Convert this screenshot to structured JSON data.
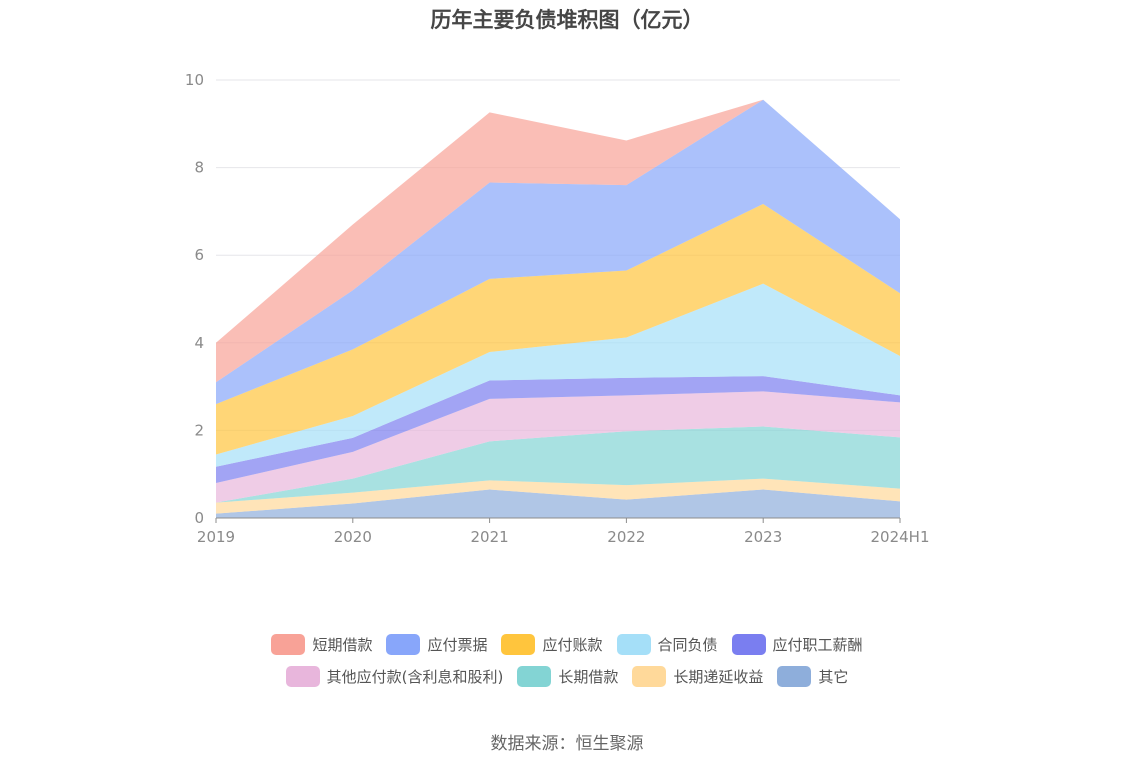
{
  "chart_data": {
    "type": "area",
    "stacked": true,
    "title": "历年主要负债堆积图（亿元）",
    "xlabel": "",
    "ylabel": "",
    "categories": [
      "2019",
      "2020",
      "2021",
      "2022",
      "2023",
      "2024H1"
    ],
    "ylim": [
      0,
      10
    ],
    "yticks": [
      "0",
      "2",
      "4",
      "6",
      "8",
      "10"
    ],
    "grid": true,
    "legend_position": "bottom",
    "series": [
      {
        "name": "其它",
        "color": "#8eaedb",
        "values": [
          0.1,
          0.33,
          0.65,
          0.42,
          0.65,
          0.38
        ]
      },
      {
        "name": "长期递延收益",
        "color": "#ffd99a",
        "values": [
          0.25,
          0.25,
          0.21,
          0.33,
          0.25,
          0.29
        ]
      },
      {
        "name": "长期借款",
        "color": "#83d4d4",
        "values": [
          0.0,
          0.32,
          0.89,
          1.23,
          1.19,
          1.17
        ]
      },
      {
        "name": "其他应付款(含利息和股利)",
        "color": "#e8b6dc",
        "values": [
          0.45,
          0.61,
          0.97,
          0.82,
          0.8,
          0.8
        ]
      },
      {
        "name": "应付职工薪酬",
        "color": "#7a7ef0",
        "values": [
          0.37,
          0.32,
          0.42,
          0.4,
          0.35,
          0.16
        ]
      },
      {
        "name": "合同负债",
        "color": "#a5dff8",
        "values": [
          0.28,
          0.5,
          0.65,
          0.92,
          2.11,
          0.9
        ]
      },
      {
        "name": "应付账款",
        "color": "#ffc53d",
        "values": [
          1.15,
          1.52,
          1.67,
          1.53,
          1.82,
          1.43
        ]
      },
      {
        "name": "应付票据",
        "color": "#88a6fa",
        "values": [
          0.5,
          1.35,
          2.2,
          1.95,
          2.38,
          1.69
        ]
      },
      {
        "name": "短期借款",
        "color": "#f8a297",
        "values": [
          0.9,
          1.5,
          1.6,
          1.02,
          0.0,
          0.0
        ]
      }
    ]
  },
  "legend": {
    "row1": [
      {
        "label": "短期借款",
        "color": "#f8a297"
      },
      {
        "label": "应付票据",
        "color": "#88a6fa"
      },
      {
        "label": "应付账款",
        "color": "#ffc53d"
      },
      {
        "label": "合同负债",
        "color": "#a5dff8"
      },
      {
        "label": "应付职工薪酬",
        "color": "#7a7ef0"
      }
    ],
    "row2": [
      {
        "label": "其他应付款(含利息和股利)",
        "color": "#e8b6dc"
      },
      {
        "label": "长期借款",
        "color": "#83d4d4"
      },
      {
        "label": "长期递延收益",
        "color": "#ffd99a"
      },
      {
        "label": "其它",
        "color": "#8eaedb"
      }
    ]
  },
  "footer": {
    "source": "数据来源：恒生聚源"
  }
}
